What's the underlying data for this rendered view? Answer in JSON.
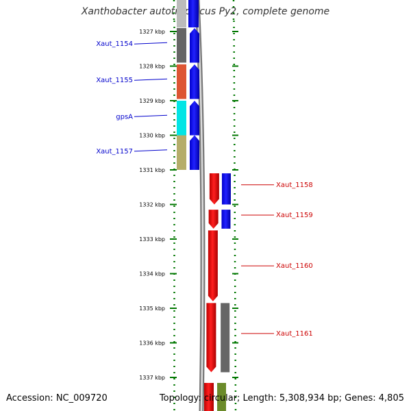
{
  "title": "Xanthobacter autotrophicus Py2, complete genome",
  "footer": {
    "accession": "Accession: NC_009720",
    "topology": "Topology: circular; Length: 5,308,934 bp; Genes: 4,805"
  },
  "axis": {
    "unit": "kbp",
    "ticks": [
      {
        "kbp": 1327,
        "label": "1327 kbp"
      },
      {
        "kbp": 1328,
        "label": "1328 kbp"
      },
      {
        "kbp": 1329,
        "label": "1329 kbp"
      },
      {
        "kbp": 1330,
        "label": "1330 kbp"
      },
      {
        "kbp": 1331,
        "label": "1331 kbp"
      },
      {
        "kbp": 1332,
        "label": "1332 kbp"
      },
      {
        "kbp": 1333,
        "label": "1333 kbp"
      },
      {
        "kbp": 1334,
        "label": "1334 kbp"
      },
      {
        "kbp": 1335,
        "label": "1335 kbp"
      },
      {
        "kbp": 1336,
        "label": "1336 kbp"
      },
      {
        "kbp": 1337,
        "label": "1337 kbp"
      }
    ]
  },
  "colors": {
    "left_label": "#0000cc",
    "right_label": "#cc0000",
    "tick_green": "#007700",
    "backbone": "#888888"
  },
  "genes": {
    "reverse": [
      {
        "label": "Xaut_1154",
        "start": 1326.9,
        "end": 1327.9,
        "color": "#666666"
      },
      {
        "label": "Xaut_1155",
        "start": 1327.95,
        "end": 1328.95,
        "color": "#dd5533"
      },
      {
        "label": "gpsA",
        "start": 1329.0,
        "end": 1330.0,
        "color": "#00e5e5"
      },
      {
        "label": "Xaut_1157",
        "start": 1330.0,
        "end": 1331.0,
        "color": "#b5ad6a"
      }
    ],
    "forward": [
      {
        "label": "Xaut_1158",
        "start": 1331.1,
        "end": 1332.0,
        "color": "#e00000"
      },
      {
        "label": "Xaut_1159",
        "start": 1332.15,
        "end": 1332.7,
        "color": "#e00000"
      },
      {
        "label": "Xaut_1160",
        "start": 1332.75,
        "end": 1334.8,
        "color": "#e00000"
      },
      {
        "label": "Xaut_1161",
        "start": 1334.85,
        "end": 1336.85,
        "color": "#e00000"
      }
    ]
  }
}
